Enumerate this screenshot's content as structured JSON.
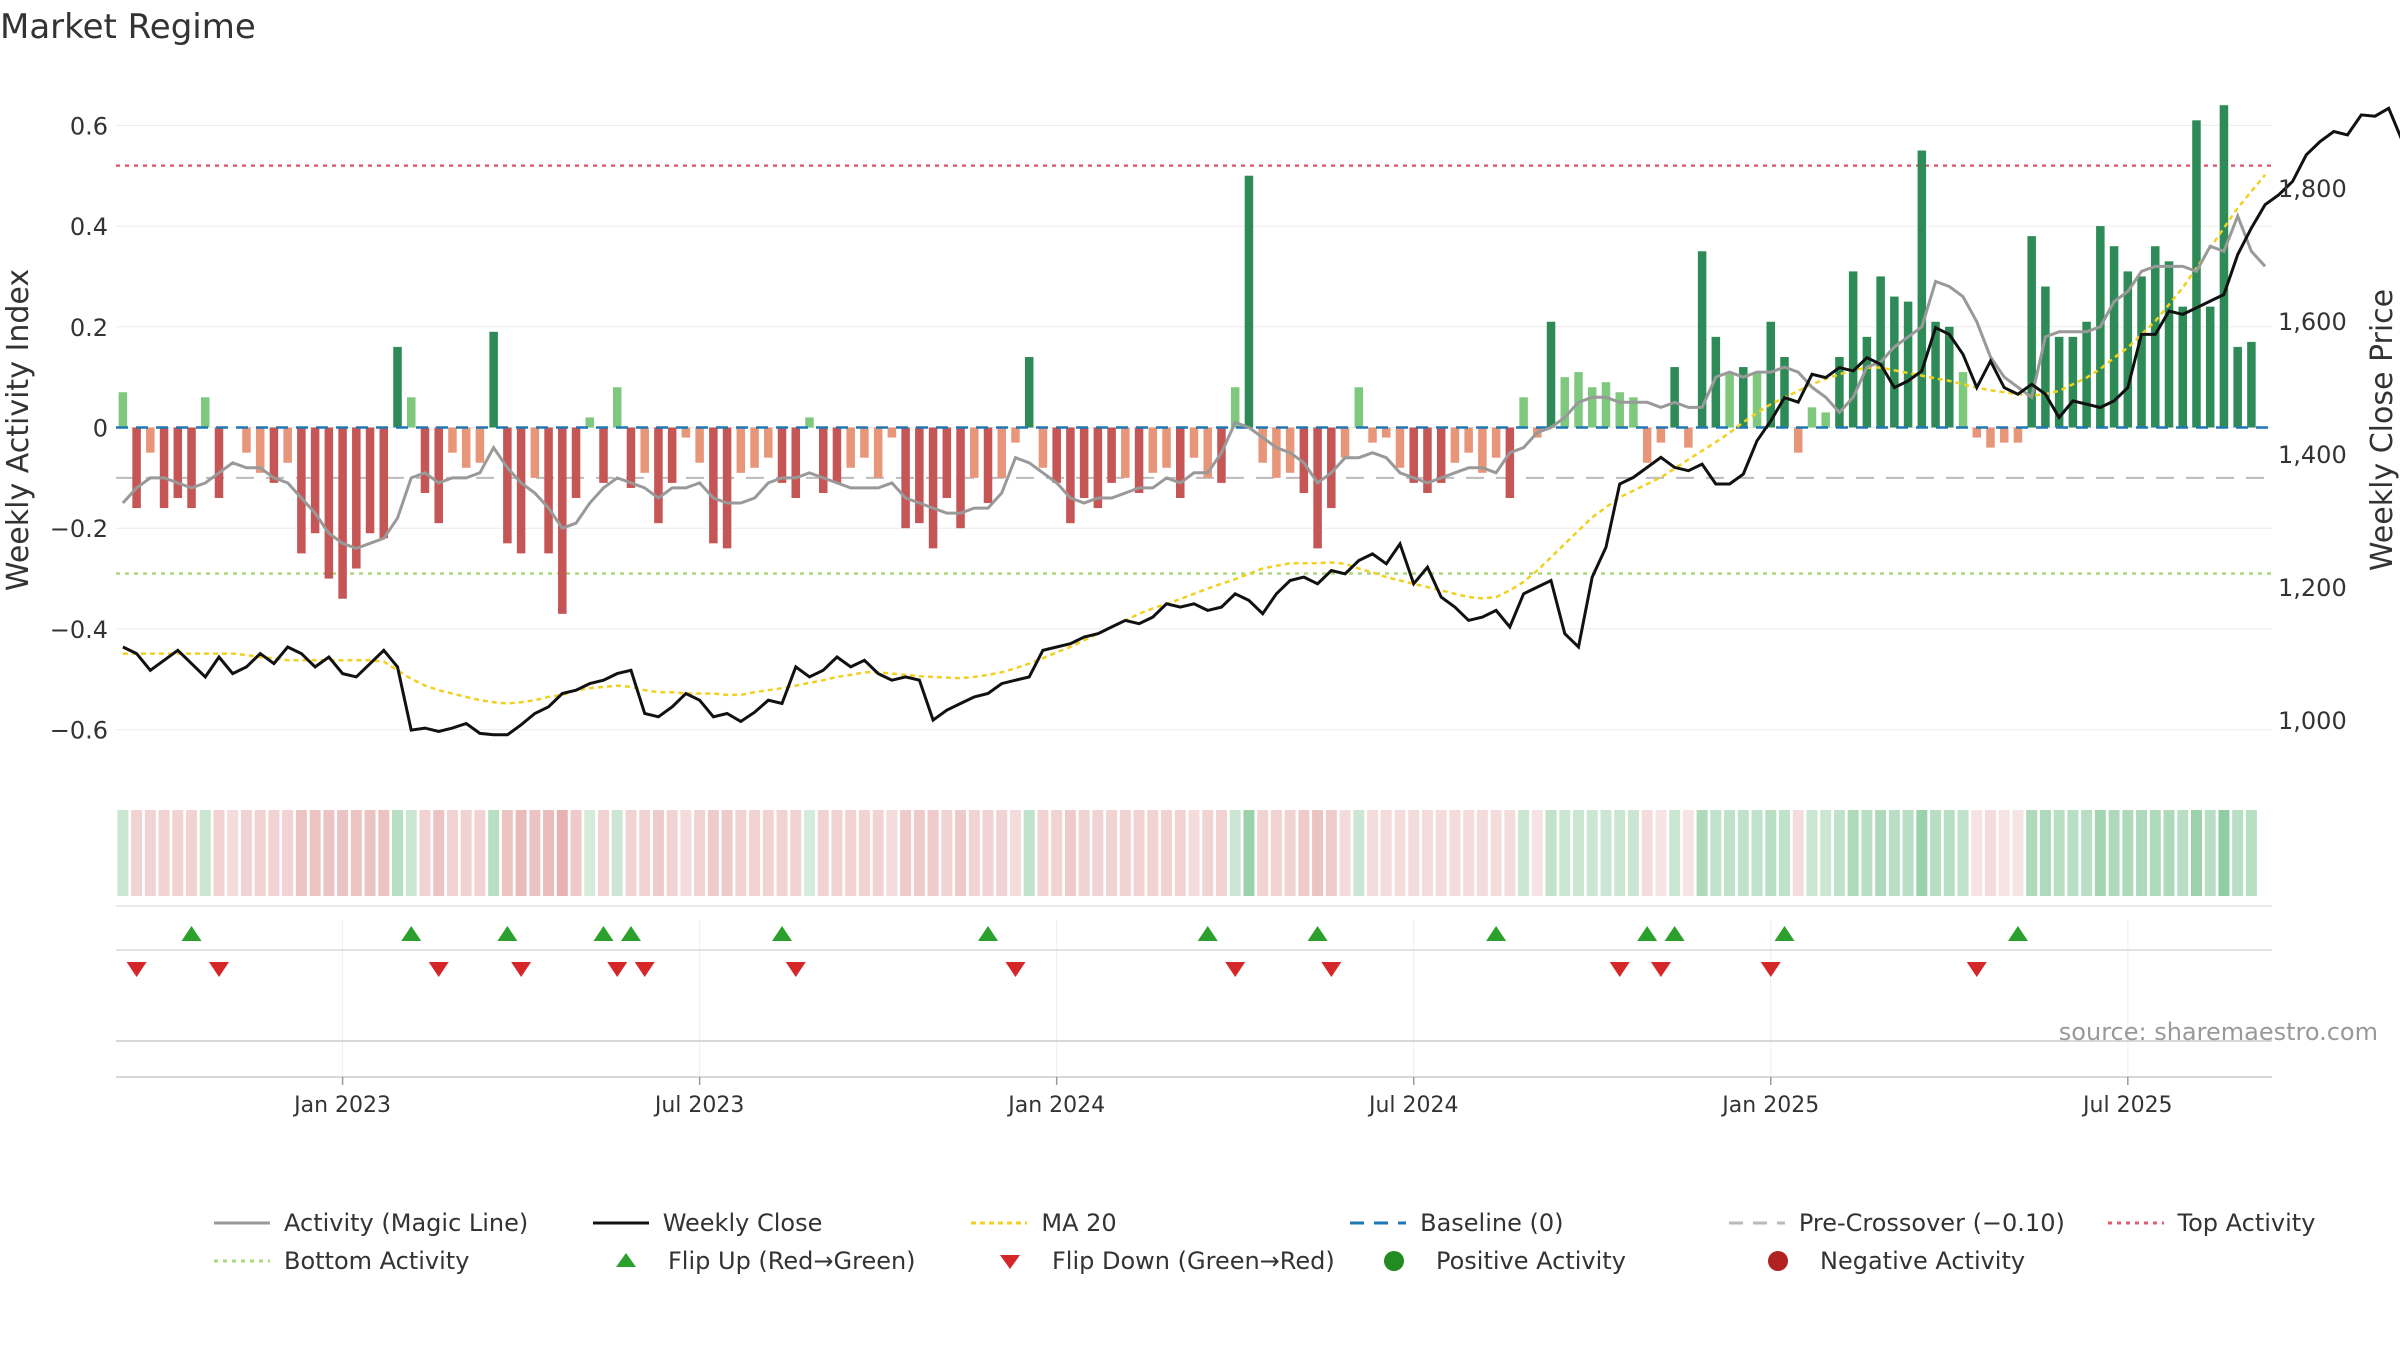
{
  "title": "Market Regime",
  "source": "source: sharemaestro.com",
  "chart_data": {
    "type": "bar",
    "y_left_label": "Weekly Activity Index",
    "y_right_label": "Weekly Close Price",
    "y_left_ticks": [
      {
        "value": 0.6,
        "label": "0.6"
      },
      {
        "value": 0.4,
        "label": "0.4"
      },
      {
        "value": 0.2,
        "label": "0.2"
      },
      {
        "value": 0.0,
        "label": "0"
      },
      {
        "value": -0.2,
        "label": "−0.2"
      },
      {
        "value": -0.4,
        "label": "−0.4"
      },
      {
        "value": -0.6,
        "label": "−0.6"
      }
    ],
    "y_right_ticks": [
      {
        "value": 1800,
        "label": "1,800"
      },
      {
        "value": 1600,
        "label": "1,600"
      },
      {
        "value": 1400,
        "label": "1,400"
      },
      {
        "value": 1200,
        "label": "1,200"
      },
      {
        "value": 1000,
        "label": "1,000"
      }
    ],
    "ylim_left": [
      -0.7,
      0.7
    ],
    "ylim_right": [
      910,
      1970
    ],
    "x_ticks": [
      {
        "week": 16,
        "label": "Jan 2023"
      },
      {
        "week": 42,
        "label": "Jul 2023"
      },
      {
        "week": 68,
        "label": "Jan 2024"
      },
      {
        "week": 94,
        "label": "Jul 2024"
      },
      {
        "week": 120,
        "label": "Jan 2025"
      },
      {
        "week": 146,
        "label": "Jul 2025"
      }
    ],
    "weeks_range": [
      -0.5,
      156.5
    ],
    "levels": {
      "top": 0.52,
      "bottom": -0.29,
      "pre_crossover": -0.1,
      "baseline": 0.0
    },
    "colors": {
      "positive_strong": "#2e8b57",
      "positive_light": "#7fc97f",
      "negative_strong": "#c65555",
      "negative_light": "#e8967a",
      "magic_line": "#999999",
      "close": "#111111",
      "ma20": "#f0d020",
      "baseline": "#1f77b4",
      "pre_crossover": "#bbbbbb",
      "top": "#e06070",
      "bottom": "#a8d87a",
      "flip_up": "#2ca02c",
      "flip_down": "#d62728"
    },
    "activity": [
      0.07,
      -0.16,
      -0.05,
      -0.16,
      -0.14,
      -0.16,
      0.06,
      -0.14,
      0,
      -0.05,
      -0.09,
      -0.11,
      -0.07,
      -0.25,
      -0.21,
      -0.3,
      -0.34,
      -0.28,
      -0.21,
      -0.22,
      0.16,
      0.06,
      -0.13,
      -0.19,
      -0.05,
      -0.08,
      -0.07,
      0.19,
      -0.23,
      -0.25,
      -0.1,
      -0.25,
      -0.37,
      -0.14,
      0.02,
      -0.11,
      0.08,
      -0.12,
      -0.09,
      -0.19,
      -0.11,
      -0.02,
      -0.07,
      -0.23,
      -0.24,
      -0.09,
      -0.08,
      -0.06,
      -0.11,
      -0.14,
      0.02,
      -0.13,
      -0.11,
      -0.08,
      -0.06,
      -0.1,
      -0.02,
      -0.2,
      -0.19,
      -0.24,
      -0.14,
      -0.2,
      -0.1,
      -0.15,
      -0.1,
      -0.03,
      0.14,
      -0.08,
      -0.11,
      -0.19,
      -0.14,
      -0.16,
      -0.11,
      -0.1,
      -0.13,
      -0.09,
      -0.08,
      -0.14,
      -0.06,
      -0.1,
      -0.11,
      0.08,
      0.5,
      -0.07,
      -0.1,
      -0.09,
      -0.13,
      -0.24,
      -0.16,
      -0.06,
      0.08,
      -0.03,
      -0.02,
      -0.08,
      -0.11,
      -0.13,
      -0.11,
      -0.07,
      -0.05,
      -0.09,
      -0.06,
      -0.14,
      0.06,
      -0.02,
      0.21,
      0.1,
      0.11,
      0.08,
      0.09,
      0.07,
      0.06,
      -0.07,
      -0.03,
      0.12,
      -0.04,
      0.35,
      0.18,
      0.11,
      0.12,
      0.11,
      0.21,
      0.14,
      -0.05,
      0.04,
      0.03,
      0.14,
      0.31,
      0.18,
      0.3,
      0.26,
      0.25,
      0.55,
      0.21,
      0.2,
      0.11,
      -0.02,
      -0.04,
      -0.03,
      -0.03,
      0.38,
      0.28,
      0.18,
      0.18,
      0.21,
      0.4,
      0.36,
      0.31,
      0.3,
      0.36,
      0.33,
      0.24,
      0.61,
      0.24,
      0.64,
      0.16,
      0.17
    ],
    "magic_line": [
      -0.15,
      -0.12,
      -0.1,
      -0.1,
      -0.11,
      -0.12,
      -0.11,
      -0.09,
      -0.07,
      -0.08,
      -0.08,
      -0.1,
      -0.11,
      -0.14,
      -0.17,
      -0.21,
      -0.23,
      -0.24,
      -0.23,
      -0.22,
      -0.18,
      -0.1,
      -0.09,
      -0.11,
      -0.1,
      -0.1,
      -0.09,
      -0.04,
      -0.08,
      -0.11,
      -0.13,
      -0.16,
      -0.2,
      -0.19,
      -0.15,
      -0.12,
      -0.1,
      -0.11,
      -0.12,
      -0.14,
      -0.12,
      -0.12,
      -0.11,
      -0.14,
      -0.15,
      -0.15,
      -0.14,
      -0.11,
      -0.1,
      -0.1,
      -0.09,
      -0.1,
      -0.11,
      -0.12,
      -0.12,
      -0.12,
      -0.11,
      -0.14,
      -0.15,
      -0.16,
      -0.17,
      -0.17,
      -0.16,
      -0.16,
      -0.13,
      -0.06,
      -0.07,
      -0.09,
      -0.11,
      -0.14,
      -0.15,
      -0.14,
      -0.14,
      -0.13,
      -0.12,
      -0.12,
      -0.1,
      -0.11,
      -0.09,
      -0.09,
      -0.05,
      0.01,
      0.0,
      -0.02,
      -0.04,
      -0.05,
      -0.07,
      -0.11,
      -0.09,
      -0.06,
      -0.06,
      -0.05,
      -0.06,
      -0.09,
      -0.1,
      -0.11,
      -0.1,
      -0.09,
      -0.08,
      -0.08,
      -0.09,
      -0.05,
      -0.04,
      -0.01,
      0.0,
      0.02,
      0.05,
      0.06,
      0.06,
      0.05,
      0.05,
      0.05,
      0.04,
      0.05,
      0.04,
      0.04,
      0.1,
      0.11,
      0.1,
      0.11,
      0.11,
      0.12,
      0.11,
      0.08,
      0.06,
      0.03,
      0.06,
      0.12,
      0.13,
      0.16,
      0.18,
      0.2,
      0.29,
      0.28,
      0.26,
      0.21,
      0.14,
      0.1,
      0.08,
      0.06,
      0.18,
      0.19,
      0.19,
      0.19,
      0.2,
      0.25,
      0.27,
      0.31,
      0.32,
      0.32,
      0.32,
      0.31,
      0.36,
      0.35,
      0.42,
      0.35,
      0.32
    ],
    "close": [
      1110,
      1100,
      1075,
      1090,
      1105,
      1085,
      1065,
      1095,
      1070,
      1080,
      1100,
      1085,
      1110,
      1100,
      1080,
      1095,
      1070,
      1065,
      1085,
      1105,
      1080,
      985,
      988,
      983,
      988,
      995,
      980,
      978,
      978,
      993,
      1010,
      1020,
      1040,
      1045,
      1055,
      1060,
      1070,
      1075,
      1010,
      1005,
      1020,
      1040,
      1030,
      1005,
      1010,
      998,
      1012,
      1030,
      1025,
      1080,
      1065,
      1075,
      1095,
      1080,
      1090,
      1070,
      1060,
      1065,
      1060,
      1000,
      1015,
      1025,
      1035,
      1040,
      1055,
      1060,
      1065,
      1105,
      1110,
      1115,
      1125,
      1130,
      1140,
      1150,
      1145,
      1155,
      1175,
      1170,
      1175,
      1165,
      1170,
      1190,
      1180,
      1160,
      1190,
      1210,
      1215,
      1205,
      1225,
      1220,
      1240,
      1250,
      1235,
      1265,
      1205,
      1230,
      1185,
      1170,
      1150,
      1155,
      1165,
      1140,
      1190,
      1200,
      1210,
      1130,
      1110,
      1215,
      1260,
      1355,
      1365,
      1380,
      1395,
      1380,
      1375,
      1385,
      1355,
      1355,
      1370,
      1420,
      1450,
      1485,
      1478,
      1520,
      1515,
      1530,
      1525,
      1545,
      1535,
      1500,
      1510,
      1525,
      1590,
      1580,
      1550,
      1500,
      1540,
      1500,
      1490,
      1505,
      1490,
      1455,
      1480,
      1475,
      1470,
      1480,
      1500,
      1580,
      1580,
      1615,
      1610,
      1620,
      1630,
      1640,
      1700,
      1740,
      1775,
      1790,
      1810,
      1850,
      1870,
      1885,
      1880,
      1910,
      1908,
      1920,
      1870,
      1880,
      1850
    ],
    "ma20": [
      1100,
      1100,
      1100,
      1100,
      1100,
      1100,
      1100,
      1100,
      1100,
      1098,
      1095,
      1093,
      1090,
      1090,
      1090,
      1090,
      1090,
      1090,
      1090,
      1088,
      1075,
      1062,
      1052,
      1045,
      1040,
      1035,
      1030,
      1027,
      1025,
      1027,
      1030,
      1035,
      1038,
      1045,
      1048,
      1050,
      1052,
      1050,
      1045,
      1042,
      1042,
      1040,
      1040,
      1040,
      1038,
      1038,
      1042,
      1045,
      1048,
      1052,
      1056,
      1060,
      1065,
      1068,
      1072,
      1072,
      1070,
      1068,
      1066,
      1065,
      1064,
      1063,
      1065,
      1068,
      1072,
      1078,
      1085,
      1093,
      1102,
      1110,
      1120,
      1130,
      1140,
      1150,
      1160,
      1168,
      1175,
      1182,
      1190,
      1198,
      1205,
      1212,
      1220,
      1228,
      1232,
      1236,
      1236,
      1236,
      1237,
      1235,
      1228,
      1222,
      1215,
      1210,
      1205,
      1200,
      1195,
      1190,
      1185,
      1183,
      1185,
      1195,
      1208,
      1225,
      1245,
      1265,
      1285,
      1305,
      1320,
      1335,
      1345,
      1355,
      1365,
      1378,
      1392,
      1405,
      1418,
      1432,
      1448,
      1462,
      1475,
      1485,
      1495,
      1505,
      1513,
      1520,
      1526,
      1530,
      1530,
      1526,
      1522,
      1518,
      1514,
      1510,
      1505,
      1500,
      1496,
      1493,
      1490,
      1488,
      1490,
      1495,
      1505,
      1515,
      1528,
      1545,
      1560,
      1580,
      1600,
      1625,
      1650,
      1680,
      1710,
      1740,
      1770,
      1795,
      1820
    ],
    "regime_strip": [
      0.3,
      -0.3,
      -0.3,
      -0.3,
      -0.3,
      -0.3,
      0.3,
      -0.3,
      -0.2,
      -0.3,
      -0.3,
      -0.3,
      -0.3,
      -0.5,
      -0.5,
      -0.5,
      -0.5,
      -0.5,
      -0.5,
      -0.5,
      0.5,
      0.3,
      -0.3,
      -0.5,
      -0.3,
      -0.3,
      -0.3,
      0.5,
      -0.5,
      -0.6,
      -0.5,
      -0.6,
      -0.7,
      -0.4,
      0.2,
      -0.3,
      0.3,
      -0.3,
      -0.3,
      -0.4,
      -0.3,
      -0.2,
      -0.3,
      -0.4,
      -0.4,
      -0.3,
      -0.3,
      -0.3,
      -0.3,
      -0.3,
      0.2,
      -0.3,
      -0.3,
      -0.3,
      -0.3,
      -0.3,
      -0.2,
      -0.4,
      -0.4,
      -0.4,
      -0.3,
      -0.4,
      -0.3,
      -0.3,
      -0.3,
      -0.2,
      0.4,
      -0.3,
      -0.3,
      -0.4,
      -0.3,
      -0.3,
      -0.3,
      -0.3,
      -0.3,
      -0.3,
      -0.3,
      -0.3,
      -0.2,
      -0.3,
      -0.3,
      0.3,
      0.8,
      -0.3,
      -0.3,
      -0.3,
      -0.4,
      -0.5,
      -0.4,
      -0.2,
      0.3,
      -0.2,
      -0.2,
      -0.2,
      -0.2,
      -0.2,
      -0.2,
      -0.2,
      -0.2,
      -0.2,
      -0.2,
      -0.2,
      0.3,
      -0.1,
      0.4,
      0.3,
      0.3,
      0.3,
      0.3,
      0.3,
      0.3,
      -0.2,
      -0.1,
      0.3,
      -0.1,
      0.6,
      0.4,
      0.4,
      0.4,
      0.4,
      0.5,
      0.4,
      -0.2,
      0.3,
      0.3,
      0.4,
      0.6,
      0.5,
      0.6,
      0.5,
      0.5,
      0.8,
      0.5,
      0.5,
      0.4,
      -0.1,
      -0.2,
      -0.1,
      -0.1,
      0.6,
      0.6,
      0.5,
      0.5,
      0.5,
      0.7,
      0.6,
      0.6,
      0.6,
      0.6,
      0.6,
      0.5,
      0.8,
      0.5,
      0.9,
      0.5,
      0.5
    ],
    "flip_up_weeks": [
      5,
      21,
      28,
      35,
      37,
      48,
      63,
      79,
      87,
      100,
      111,
      113,
      121,
      138
    ],
    "flip_down_weeks": [
      1,
      7,
      23,
      29,
      36,
      38,
      49,
      65,
      81,
      88,
      109,
      112,
      120,
      135
    ],
    "legend": [
      {
        "key": "line-gray",
        "label": "Activity (Magic Line)"
      },
      {
        "key": "line-black",
        "label": "Weekly Close"
      },
      {
        "key": "line-yellow-dotted",
        "label": "MA 20"
      },
      {
        "key": "line-blue-dashed",
        "label": "Baseline (0)"
      },
      {
        "key": "line-gray-dashed",
        "label": "Pre-Crossover (−0.10)"
      },
      {
        "key": "line-red-dotted",
        "label": "Top Activity"
      },
      {
        "key": "line-green-dotted",
        "label": "Bottom Activity"
      },
      {
        "key": "triangle-up",
        "label": "Flip Up (Red→Green)"
      },
      {
        "key": "triangle-down",
        "label": "Flip Down (Green→Red)"
      },
      {
        "key": "dot-green",
        "label": "Positive Activity"
      },
      {
        "key": "dot-red",
        "label": "Negative Activity"
      }
    ]
  }
}
